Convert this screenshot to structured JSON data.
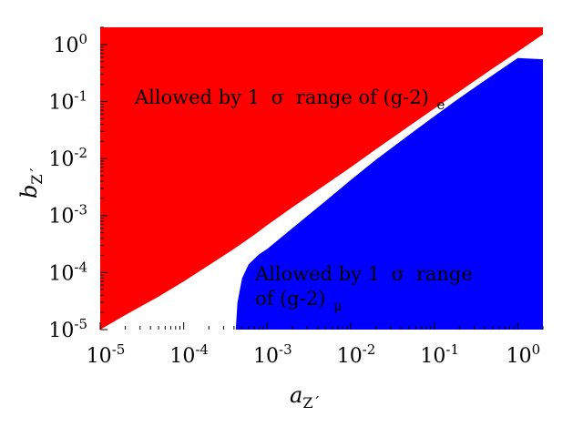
{
  "chart_data": {
    "type": "area",
    "title": "",
    "x_scale": "log",
    "y_scale": "log",
    "xlim": [
      1e-05,
      2
    ],
    "ylim": [
      1e-05,
      2
    ],
    "xlabel": {
      "main": "a",
      "sub": "Z´"
    },
    "ylabel": {
      "main": "b",
      "sub": "Z´"
    },
    "x_ticks": [
      {
        "value": 1e-05,
        "base": "10",
        "exp": "-5"
      },
      {
        "value": 0.0001,
        "base": "10",
        "exp": "-4"
      },
      {
        "value": 0.001,
        "base": "10",
        "exp": "-3"
      },
      {
        "value": 0.01,
        "base": "10",
        "exp": "-2"
      },
      {
        "value": 0.1,
        "base": "10",
        "exp": "-1"
      },
      {
        "value": 1,
        "base": "10",
        "exp": "0"
      }
    ],
    "y_ticks": [
      {
        "value": 1e-05,
        "base": "10",
        "exp": "-5"
      },
      {
        "value": 0.0001,
        "base": "10",
        "exp": "-4"
      },
      {
        "value": 0.001,
        "base": "10",
        "exp": "-3"
      },
      {
        "value": 0.01,
        "base": "10",
        "exp": "-2"
      },
      {
        "value": 0.1,
        "base": "10",
        "exp": "-1"
      },
      {
        "value": 1,
        "base": "10",
        "exp": "0"
      }
    ],
    "grid": false,
    "legend": "none",
    "regions": [
      {
        "name": "electron",
        "color": "#ff0000",
        "description_boundary": "upper-left region, bounded below by curve",
        "boundary": [
          [
            1e-05,
            1e-05
          ],
          [
            2e-05,
            1.8e-05
          ],
          [
            5e-05,
            3.8e-05
          ],
          [
            0.0001,
            7e-05
          ],
          [
            0.0002,
            0.000135
          ],
          [
            0.0004,
            0.00026
          ],
          [
            0.0007,
            0.00046
          ],
          [
            0.001,
            0.00068
          ],
          [
            0.002,
            0.0014
          ],
          [
            0.005,
            0.0035
          ],
          [
            0.01,
            0.007
          ],
          [
            0.02,
            0.0145
          ],
          [
            0.05,
            0.037
          ],
          [
            0.1,
            0.075
          ],
          [
            0.2,
            0.15
          ],
          [
            0.5,
            0.38
          ],
          [
            1,
            0.75
          ],
          [
            2,
            1.5
          ]
        ]
      },
      {
        "name": "muon",
        "color": "#0000ff",
        "description_boundary": "lower-right region, bounded above by curve",
        "boundary": [
          [
            0.00042,
            1e-05
          ],
          [
            0.00044,
            3e-05
          ],
          [
            0.0005,
            8e-05
          ],
          [
            0.0006,
            0.00014
          ],
          [
            0.0008,
            0.00021
          ],
          [
            0.001,
            0.00026
          ],
          [
            0.002,
            0.0006
          ],
          [
            0.005,
            0.0018
          ],
          [
            0.01,
            0.0042
          ],
          [
            0.02,
            0.0095
          ],
          [
            0.05,
            0.026
          ],
          [
            0.1,
            0.055
          ],
          [
            0.2,
            0.115
          ],
          [
            0.5,
            0.29
          ],
          [
            1,
            0.58
          ],
          [
            2,
            0.55
          ]
        ]
      }
    ],
    "annotations": [
      {
        "id": "electron",
        "text": "Allowed by 1",
        "sigma": "σ",
        "rest": "range of (g-2)",
        "sub": "e"
      },
      {
        "id": "muon",
        "line1": "Allowed by 1",
        "sigma": "σ",
        "line1_rest": "range",
        "line2": "of (g-2)",
        "sub": "μ"
      }
    ]
  }
}
